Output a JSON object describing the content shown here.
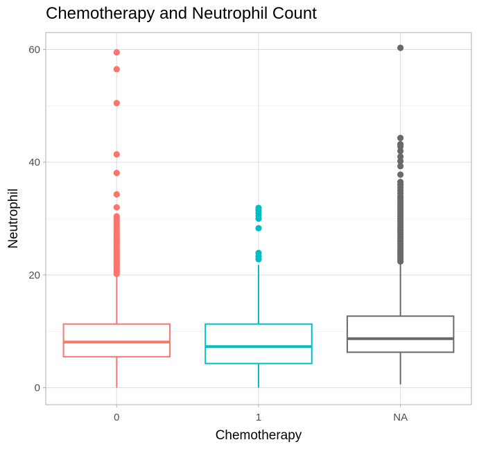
{
  "chart_data": {
    "type": "box",
    "title": "Chemotherapy and Neutrophil Count",
    "xlabel": "Chemotherapy",
    "ylabel": "Neutrophil",
    "categories": [
      "0",
      "1",
      "NA"
    ],
    "ylim": [
      -3,
      63
    ],
    "yticks": [
      0,
      20,
      40,
      60
    ],
    "grid": true,
    "legend": "none",
    "colors": [
      "#F8766D",
      "#00BFC4",
      "#696969"
    ],
    "boxes": [
      {
        "category": "0",
        "lower_whisker": 0,
        "q1": 5.5,
        "median": 8.1,
        "q3": 11.3,
        "upper_whisker": 20,
        "outliers": [
          20.2,
          20.5,
          20.8,
          21.1,
          21.4,
          21.7,
          22.0,
          22.3,
          22.6,
          22.9,
          23.2,
          23.6,
          24.0,
          24.4,
          24.8,
          25.2,
          25.6,
          26.0,
          26.4,
          26.8,
          27.2,
          27.6,
          28.0,
          28.5,
          29.0,
          29.5,
          30.0,
          30.4,
          32.0,
          34.3,
          38.1,
          41.4,
          50.5,
          56.5,
          59.5
        ]
      },
      {
        "category": "1",
        "lower_whisker": 0,
        "q1": 4.3,
        "median": 7.3,
        "q3": 11.3,
        "upper_whisker": 21.8,
        "outliers": [
          22.8,
          23.3,
          23.9,
          28.3,
          30.0,
          30.5,
          31.0,
          31.5,
          31.9
        ]
      },
      {
        "category": "NA",
        "lower_whisker": 0.6,
        "q1": 6.3,
        "median": 8.7,
        "q3": 12.7,
        "upper_whisker": 22.2,
        "outliers": [
          22.4,
          22.8,
          23.2,
          23.6,
          24.0,
          24.4,
          24.8,
          25.2,
          25.6,
          26.0,
          26.4,
          26.8,
          27.2,
          27.6,
          28.0,
          28.4,
          28.8,
          29.2,
          29.6,
          30.0,
          30.4,
          30.8,
          31.2,
          31.6,
          32.0,
          32.4,
          32.8,
          33.2,
          33.6,
          34.0,
          34.5,
          35.0,
          35.5,
          36.0,
          36.5,
          37.8,
          39.3,
          40.2,
          41.0,
          42.0,
          42.8,
          43.2,
          44.3,
          60.3
        ]
      }
    ]
  }
}
